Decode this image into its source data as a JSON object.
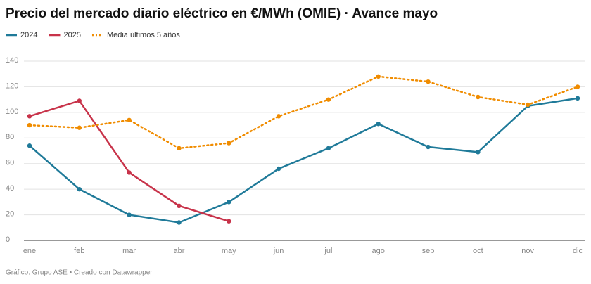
{
  "chart_data": {
    "type": "line",
    "title": "Precio del mercado diario eléctrico en €/MWh (OMIE) · Avance mayo",
    "footer": "Gráfico: Grupo ASE • Creado con Datawrapper",
    "categories": [
      "ene",
      "feb",
      "mar",
      "abr",
      "may",
      "jun",
      "jul",
      "ago",
      "sep",
      "oct",
      "nov",
      "dic"
    ],
    "series": [
      {
        "name": "2024",
        "color": "#1f7a99",
        "dashed": false,
        "values": [
          74,
          40,
          20,
          14,
          30,
          56,
          72,
          91,
          73,
          69,
          105,
          111
        ]
      },
      {
        "name": "2025",
        "color": "#c8334a",
        "dashed": false,
        "values": [
          97,
          109,
          53,
          27,
          15,
          null,
          null,
          null,
          null,
          null,
          null,
          null
        ]
      },
      {
        "name": "Media últimos 5 años",
        "color": "#f08c00",
        "dashed": true,
        "values": [
          90,
          88,
          94,
          72,
          76,
          97,
          110,
          128,
          124,
          112,
          106,
          120
        ]
      }
    ],
    "ylim": [
      0,
      140
    ],
    "yticks": [
      0,
      20,
      40,
      60,
      80,
      100,
      120,
      140
    ],
    "grid": true
  }
}
